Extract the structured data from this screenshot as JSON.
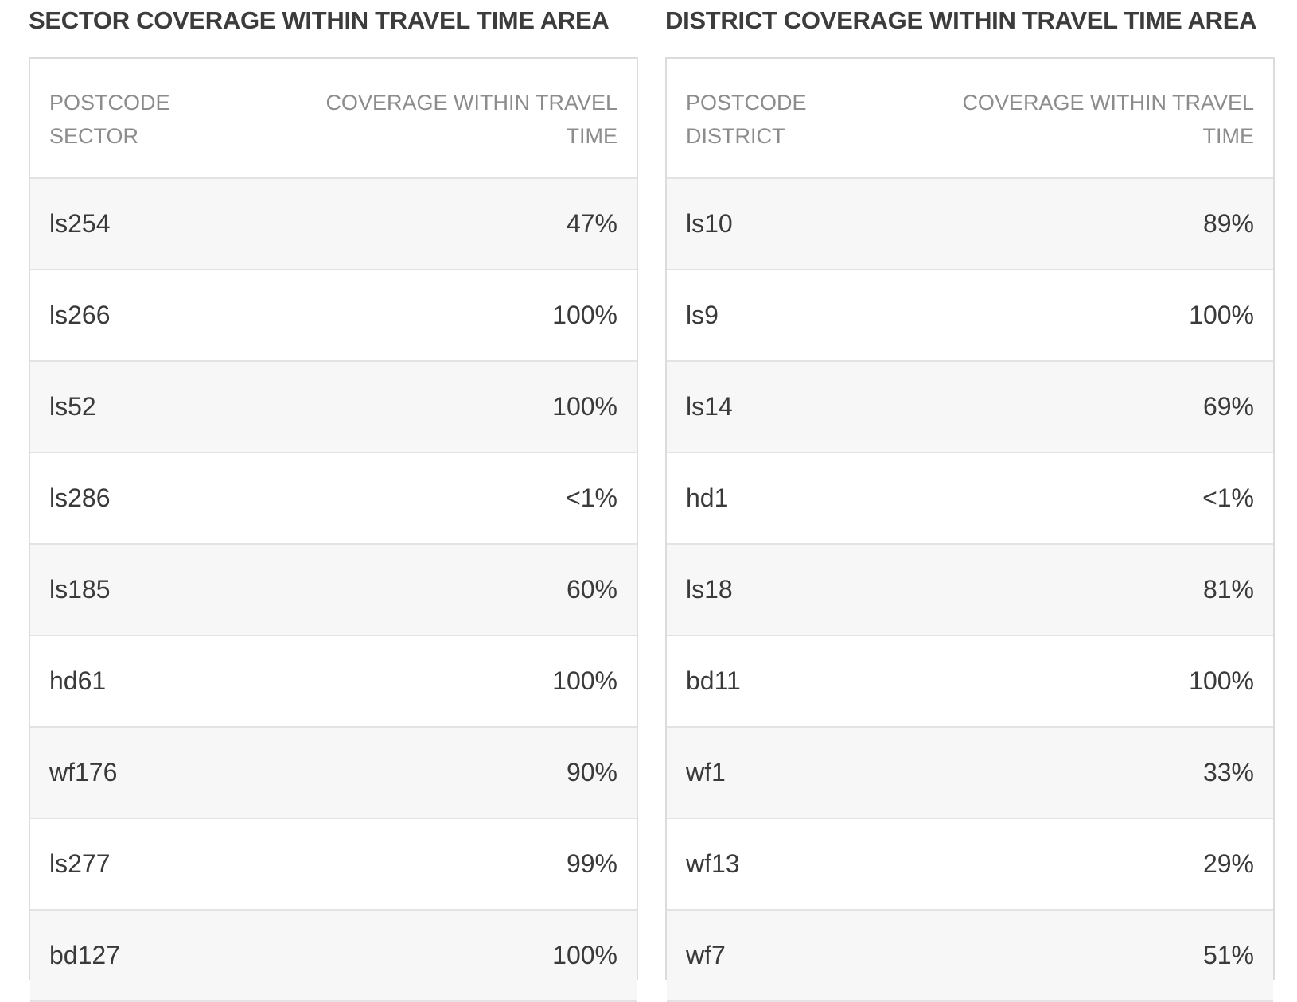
{
  "sector": {
    "title": "SECTOR COVERAGE WITHIN TRAVEL TIME AREA",
    "headers": {
      "col1_line1": "POSTCODE",
      "col1_line2": "SECTOR",
      "col2_line1": "COVERAGE WITHIN TRAVEL",
      "col2_line2": "TIME"
    },
    "rows": [
      {
        "code": "ls254",
        "coverage": "47%"
      },
      {
        "code": "ls266",
        "coverage": "100%"
      },
      {
        "code": "ls52",
        "coverage": "100%"
      },
      {
        "code": "ls286",
        "coverage": "<1%"
      },
      {
        "code": "ls185",
        "coverage": "60%"
      },
      {
        "code": "hd61",
        "coverage": "100%"
      },
      {
        "code": "wf176",
        "coverage": "90%"
      },
      {
        "code": "ls277",
        "coverage": "99%"
      },
      {
        "code": "bd127",
        "coverage": "100%"
      }
    ]
  },
  "district": {
    "title": "DISTRICT COVERAGE WITHIN TRAVEL TIME AREA",
    "headers": {
      "col1_line1": "POSTCODE",
      "col1_line2": "DISTRICT",
      "col2_line1": "COVERAGE WITHIN TRAVEL",
      "col2_line2": "TIME"
    },
    "rows": [
      {
        "code": "ls10",
        "coverage": "89%"
      },
      {
        "code": "ls9",
        "coverage": "100%"
      },
      {
        "code": "ls14",
        "coverage": "69%"
      },
      {
        "code": "hd1",
        "coverage": "<1%"
      },
      {
        "code": "ls18",
        "coverage": "81%"
      },
      {
        "code": "bd11",
        "coverage": "100%"
      },
      {
        "code": "wf1",
        "coverage": "33%"
      },
      {
        "code": "wf13",
        "coverage": "29%"
      },
      {
        "code": "wf7",
        "coverage": "51%"
      }
    ]
  }
}
